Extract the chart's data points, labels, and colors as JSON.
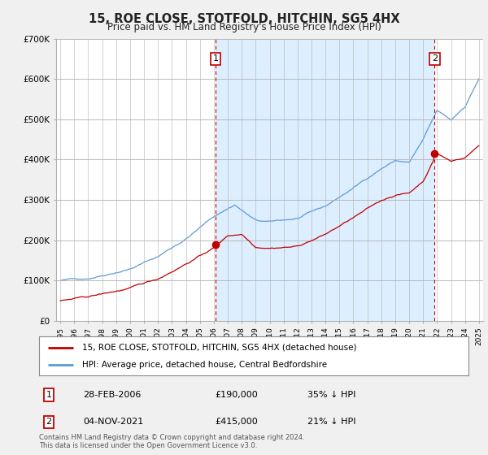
{
  "title": "15, ROE CLOSE, STOTFOLD, HITCHIN, SG5 4HX",
  "subtitle": "Price paid vs. HM Land Registry's House Price Index (HPI)",
  "ylim": [
    0,
    700000
  ],
  "yticks": [
    0,
    100000,
    200000,
    300000,
    400000,
    500000,
    600000,
    700000
  ],
  "ytick_labels": [
    "£0",
    "£100K",
    "£200K",
    "£300K",
    "£400K",
    "£500K",
    "£600K",
    "£700K"
  ],
  "hpi_color": "#5b9bd5",
  "price_color": "#c00000",
  "shade_color": "#ddeeff",
  "marker1_date": 2006.12,
  "marker1_price": 190000,
  "marker2_date": 2021.83,
  "marker2_price": 415000,
  "legend_line1": "15, ROE CLOSE, STOTFOLD, HITCHIN, SG5 4HX (detached house)",
  "legend_line2": "HPI: Average price, detached house, Central Bedfordshire",
  "table_row1": [
    "1",
    "28-FEB-2006",
    "£190,000",
    "35% ↓ HPI"
  ],
  "table_row2": [
    "2",
    "04-NOV-2021",
    "£415,000",
    "21% ↓ HPI"
  ],
  "footnote": "Contains HM Land Registry data © Crown copyright and database right 2024.\nThis data is licensed under the Open Government Licence v3.0.",
  "bg_color": "#f0f0f0",
  "plot_bg_color": "#ffffff"
}
